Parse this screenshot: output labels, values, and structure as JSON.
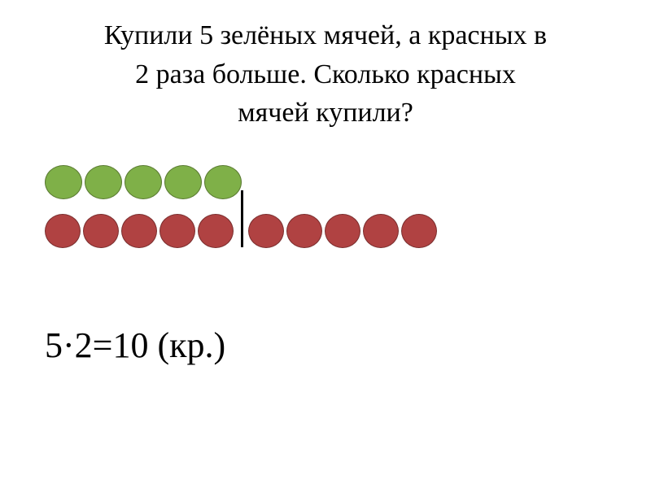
{
  "problem": {
    "line1": "Купили 5 зелёных мячей, а красных в",
    "line2": "2 раза больше. Сколько красных",
    "line3": "мячей купили?"
  },
  "visualization": {
    "green_count": 5,
    "red_group1_count": 5,
    "red_group2_count": 5,
    "colors": {
      "green_fill": "#7fb048",
      "green_border": "#5a7a32",
      "red_fill": "#b04242",
      "red_border": "#7a2e2e"
    }
  },
  "answer": {
    "expression": "5·2=10 (кр.)"
  }
}
